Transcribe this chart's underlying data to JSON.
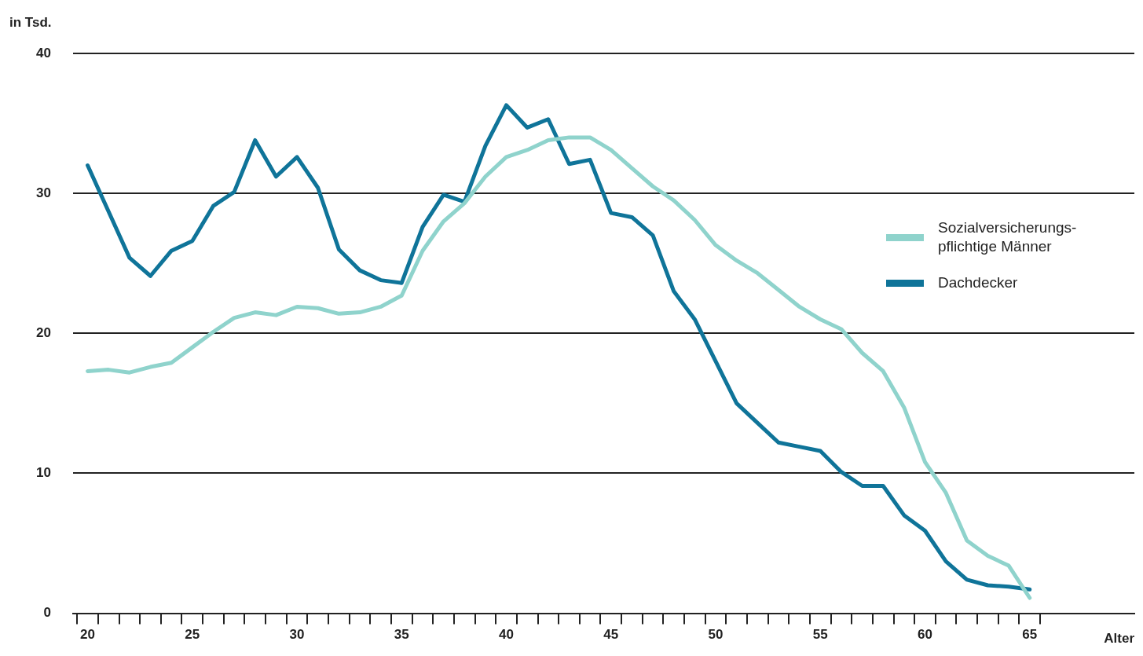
{
  "chart_data": {
    "type": "line",
    "ylabel": "in Tsd.",
    "xlabel": "Alter",
    "x": [
      20,
      21,
      22,
      23,
      24,
      25,
      26,
      27,
      28,
      29,
      30,
      31,
      32,
      33,
      34,
      35,
      36,
      37,
      38,
      39,
      40,
      41,
      42,
      43,
      44,
      45,
      46,
      47,
      48,
      49,
      50,
      51,
      52,
      53,
      54,
      55,
      56,
      57,
      58,
      59,
      60,
      61,
      62,
      63,
      64,
      65
    ],
    "series": [
      {
        "name": "Sozialversicherungs-pflichtige Männer",
        "color": "#8fd3cc",
        "values": [
          17.3,
          17.4,
          17.2,
          17.6,
          17.9,
          19.0,
          20.1,
          21.1,
          21.5,
          21.3,
          21.9,
          21.8,
          21.4,
          21.5,
          21.9,
          22.7,
          25.9,
          28.0,
          29.3,
          31.2,
          32.6,
          33.1,
          33.8,
          34.0,
          34.0,
          33.1,
          31.8,
          30.5,
          29.5,
          28.1,
          26.3,
          25.2,
          24.3,
          23.1,
          21.9,
          21.0,
          20.3,
          18.6,
          17.3,
          14.7,
          10.8,
          8.6,
          5.2,
          4.1,
          3.4,
          1.1
        ]
      },
      {
        "name": "Dachdecker",
        "color": "#0f7499",
        "values": [
          32.0,
          28.7,
          25.4,
          24.1,
          25.9,
          26.6,
          29.1,
          30.1,
          33.8,
          31.2,
          32.6,
          30.4,
          26.0,
          24.5,
          23.8,
          23.6,
          27.6,
          29.9,
          29.4,
          33.4,
          36.3,
          34.7,
          35.3,
          32.1,
          32.4,
          28.6,
          28.3,
          27.0,
          23.0,
          21.0,
          18.0,
          15.0,
          13.6,
          12.2,
          11.9,
          11.6,
          10.1,
          9.1,
          9.1,
          7.0,
          5.9,
          3.7,
          2.4,
          2.0,
          1.9,
          1.7
        ]
      }
    ],
    "xlim": [
      19.3,
      70
    ],
    "xticks": [
      {
        "value": 19.5,
        "label": null
      },
      20,
      {
        "value": 20.5,
        "label": null
      },
      {
        "value": 21.5,
        "label": null
      },
      {
        "value": 22.5,
        "label": null
      },
      {
        "value": 23.5,
        "label": null
      },
      {
        "value": 24.5,
        "label": null
      },
      25,
      {
        "value": 25.5,
        "label": null
      },
      {
        "value": 26.5,
        "label": null
      },
      {
        "value": 27.5,
        "label": null
      },
      {
        "value": 28.5,
        "label": null
      },
      {
        "value": 29.5,
        "label": null
      },
      30,
      {
        "value": 30.5,
        "label": null
      },
      {
        "value": 31.5,
        "label": null
      },
      {
        "value": 32.5,
        "label": null
      },
      {
        "value": 33.5,
        "label": null
      },
      {
        "value": 34.5,
        "label": null
      },
      35,
      {
        "value": 35.5,
        "label": null
      },
      {
        "value": 36.5,
        "label": null
      },
      {
        "value": 37.5,
        "label": null
      },
      {
        "value": 38.5,
        "label": null
      },
      {
        "value": 39.5,
        "label": null
      },
      40,
      {
        "value": 40.5,
        "label": null
      },
      {
        "value": 41.5,
        "label": null
      },
      {
        "value": 42.5,
        "label": null
      },
      {
        "value": 43.5,
        "label": null
      },
      {
        "value": 44.5,
        "label": null
      },
      45,
      {
        "value": 45.5,
        "label": null
      },
      {
        "value": 46.5,
        "label": null
      },
      {
        "value": 47.5,
        "label": null
      },
      {
        "value": 48.5,
        "label": null
      },
      {
        "value": 49.5,
        "label": null
      },
      50,
      {
        "value": 50.5,
        "label": null
      },
      {
        "value": 51.5,
        "label": null
      },
      {
        "value": 52.5,
        "label": null
      },
      {
        "value": 53.5,
        "label": null
      },
      {
        "value": 54.5,
        "label": null
      },
      55,
      {
        "value": 55.5,
        "label": null
      },
      {
        "value": 56.5,
        "label": null
      },
      {
        "value": 57.5,
        "label": null
      },
      {
        "value": 58.5,
        "label": null
      },
      {
        "value": 59.5,
        "label": null
      },
      60,
      {
        "value": 60.5,
        "label": null
      },
      {
        "value": 61.5,
        "label": null
      },
      {
        "value": 62.5,
        "label": null
      },
      {
        "value": 63.5,
        "label": null
      },
      {
        "value": 64.5,
        "label": null
      },
      65,
      {
        "value": 65.5,
        "label": null
      }
    ],
    "ylim": [
      0,
      40
    ],
    "yticks": [
      0,
      10,
      20,
      30,
      40
    ],
    "grid": "y",
    "legend": "right",
    "marker": "none",
    "line_style": "solid"
  }
}
